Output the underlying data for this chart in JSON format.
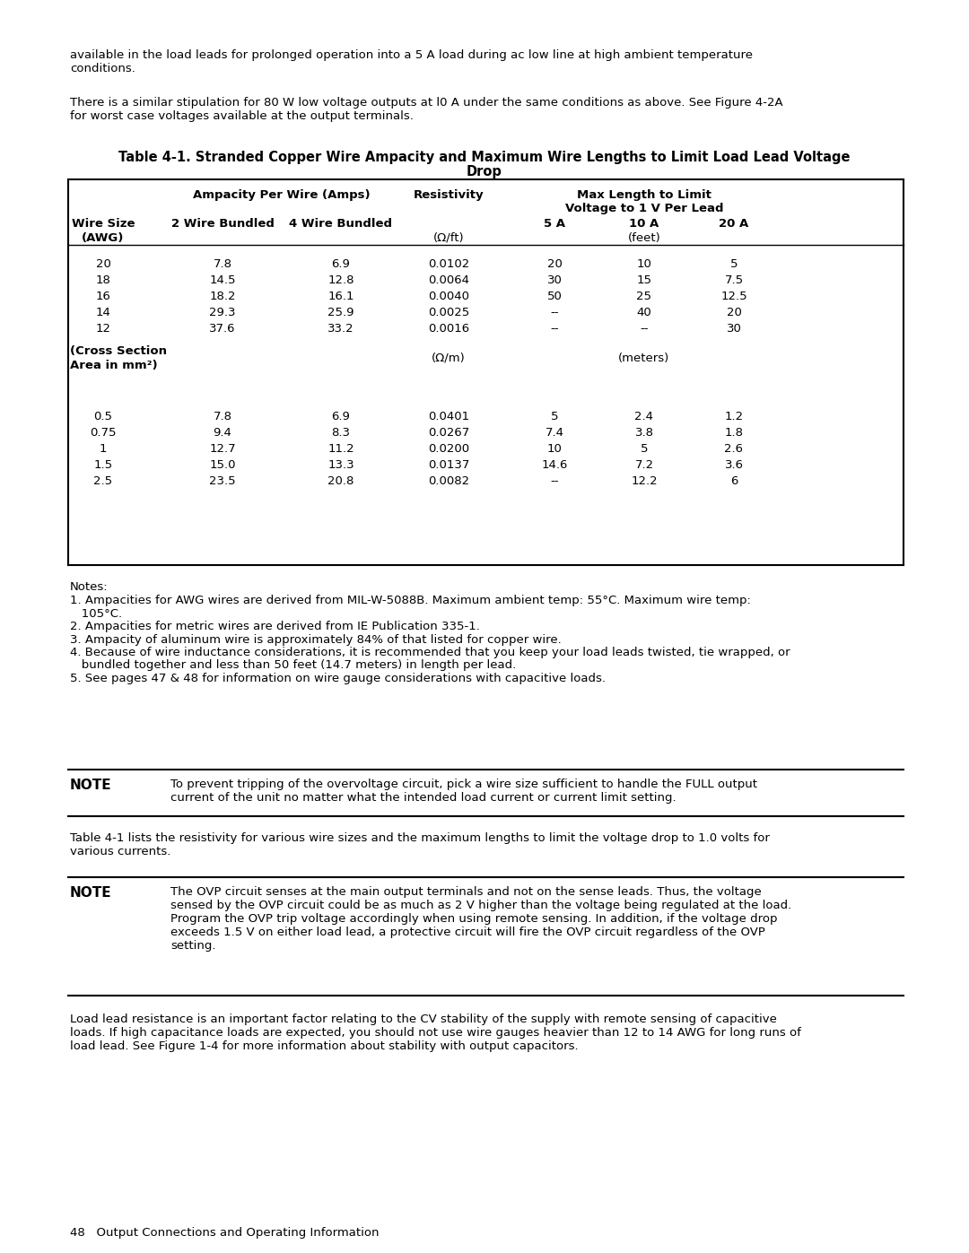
{
  "bg_color": "#ffffff",
  "para1": "available in the load leads for prolonged operation into a 5 A load during ac low line at high ambient temperature\nconditions.",
  "para2": "There is a similar stipulation for 80 W low voltage outputs at l0 A under the same conditions as above. See Figure 4-2A\nfor worst case voltages available at the output terminals.",
  "table_title_line1": "Table 4-1. Stranded Copper Wire Ampacity and Maximum Wire Lengths to Limit Load Lead Voltage",
  "table_title_line2": "Drop",
  "awg_rows": [
    [
      "20",
      "7.8",
      "6.9",
      "0.0102",
      "20",
      "10",
      "5"
    ],
    [
      "18",
      "14.5",
      "12.8",
      "0.0064",
      "30",
      "15",
      "7.5"
    ],
    [
      "16",
      "18.2",
      "16.1",
      "0.0040",
      "50",
      "25",
      "12.5"
    ],
    [
      "14",
      "29.3",
      "25.9",
      "0.0025",
      "--",
      "40",
      "20"
    ],
    [
      "12",
      "37.6",
      "33.2",
      "0.0016",
      "--",
      "--",
      "30"
    ]
  ],
  "metric_label_line1": "(Cross Section",
  "metric_label_line2": "Area in mm²)",
  "metric_units_resistivity": "(Ω/m)",
  "metric_units_length": "(meters)",
  "metric_rows": [
    [
      "0.5",
      "7.8",
      "6.9",
      "0.0401",
      "5",
      "2.4",
      "1.2"
    ],
    [
      "0.75",
      "9.4",
      "8.3",
      "0.0267",
      "7.4",
      "3.8",
      "1.8"
    ],
    [
      "1",
      "12.7",
      "11.2",
      "0.0200",
      "10",
      "5",
      "2.6"
    ],
    [
      "1.5",
      "15.0",
      "13.3",
      "0.0137",
      "14.6",
      "7.2",
      "3.6"
    ],
    [
      "2.5",
      "23.5",
      "20.8",
      "0.0082",
      "--",
      "12.2",
      "6"
    ]
  ],
  "notes_header": "Notes:",
  "note_lines": [
    "1. Ampacities for AWG wires are derived from MIL-W-5088B. Maximum ambient temp: 55°C. Maximum wire temp:",
    "   105°C.",
    "2. Ampacities for metric wires are derived from IE Publication 335-1.",
    "3. Ampacity of aluminum wire is approximately 84% of that listed for copper wire.",
    "4. Because of wire inductance considerations, it is recommended that you keep your load leads twisted, tie wrapped, or",
    "   bundled together and less than 50 feet (14.7 meters) in length per lead.",
    "5. See pages 47 & 48 for information on wire gauge considerations with capacitive loads."
  ],
  "note1_label": "NOTE",
  "note1_text_line1": "To prevent tripping of the overvoltage circuit, pick a wire size sufficient to handle the FULL output",
  "note1_text_line2": "current of the unit no matter what the intended load current or current limit setting.",
  "para3_line1": "Table 4-1 lists the resistivity for various wire sizes and the maximum lengths to limit the voltage drop to 1.0 volts for",
  "para3_line2": "various currents.",
  "note2_label": "NOTE",
  "note2_text_lines": [
    "The OVP circuit senses at the main output terminals and not on the sense leads. Thus, the voltage",
    "sensed by the OVP circuit could be as much as 2 V higher than the voltage being regulated at the load.",
    "Program the OVP trip voltage accordingly when using remote sensing. In addition, if the voltage drop",
    "exceeds 1.5 V on either load lead, a protective circuit will fire the OVP circuit regardless of the OVP",
    "setting."
  ],
  "para4_lines": [
    "Load lead resistance is an important factor relating to the CV stability of the supply with remote sensing of capacitive",
    "loads. If high capacitance loads are expected, you should not use wire gauges heavier than 12 to 14 AWG for long runs of",
    "load lead. See Figure 1-4 for more information about stability with output capacitors."
  ],
  "footer": "48   Output Connections and Operating Information"
}
